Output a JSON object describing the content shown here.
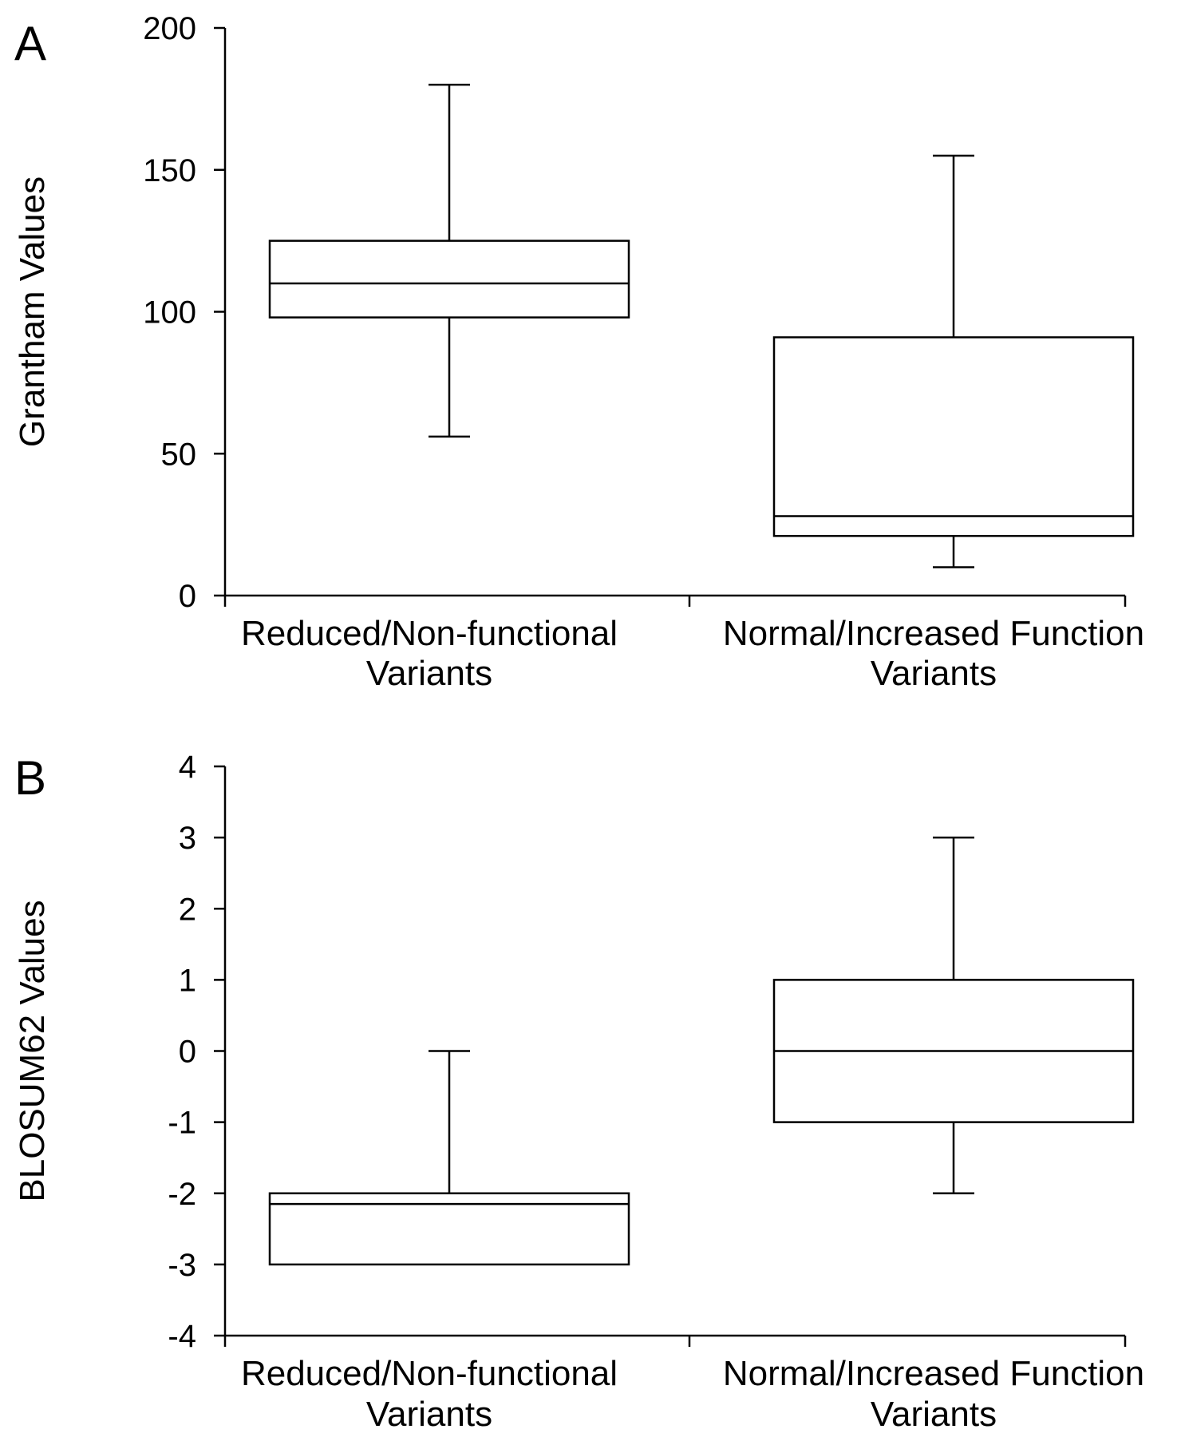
{
  "chart_data": [
    {
      "type": "box",
      "panel_label": "A",
      "title": "",
      "xlabel": "",
      "ylabel": "Grantham Values",
      "ylim": [
        0,
        200
      ],
      "yticks": [
        0,
        50,
        100,
        150,
        200
      ],
      "ytick_labels": [
        "0",
        "50",
        "100",
        "150",
        "200"
      ],
      "categories": [
        [
          "Reduced/Non-functional",
          "Variants"
        ],
        [
          "Normal/Increased Function",
          "Variants"
        ]
      ],
      "boxes": [
        {
          "whisker_low": 56,
          "q1": 98,
          "median": 110,
          "q3": 125,
          "whisker_high": 180
        },
        {
          "whisker_low": 10,
          "q1": 21,
          "median": 28,
          "q3": 91,
          "whisker_high": 155
        }
      ]
    },
    {
      "type": "box",
      "panel_label": "B",
      "title": "",
      "xlabel": "",
      "ylabel": "BLOSUM62 Values",
      "ylim": [
        -4,
        4
      ],
      "yticks": [
        -4,
        -3,
        -2,
        -1,
        0,
        1,
        2,
        3,
        4
      ],
      "ytick_labels": [
        "-4",
        "-3",
        "-2",
        "-1",
        "0",
        "1",
        "2",
        "3",
        "4"
      ],
      "categories": [
        [
          "Reduced/Non-functional",
          "Variants"
        ],
        [
          "Normal/Increased Function",
          "Variants"
        ]
      ],
      "boxes": [
        {
          "whisker_low": -3,
          "q1": -3,
          "median": -2.15,
          "q3": -2,
          "whisker_high": 0
        },
        {
          "whisker_low": -2,
          "q1": -1,
          "median": 0,
          "q3": 1,
          "whisker_high": 3
        }
      ]
    }
  ]
}
